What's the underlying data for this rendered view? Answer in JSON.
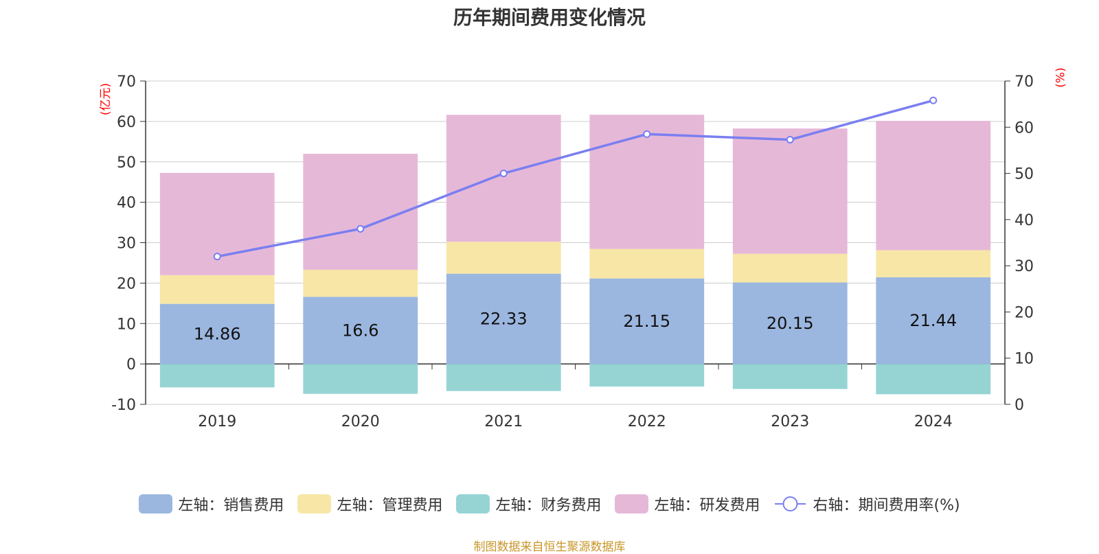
{
  "chart_data": {
    "type": "bar",
    "title": "历年期间费用变化情况",
    "categories": [
      "2019",
      "2020",
      "2021",
      "2022",
      "2023",
      "2024"
    ],
    "left_axis": {
      "unit": "(亿元)",
      "ylim": [
        -10,
        70
      ],
      "ticks": [
        -10,
        0,
        10,
        20,
        30,
        40,
        50,
        60,
        70
      ]
    },
    "right_axis": {
      "unit": "(%)",
      "ylim": [
        0,
        70
      ],
      "ticks": [
        0,
        10,
        20,
        30,
        40,
        50,
        60,
        70
      ]
    },
    "series": [
      {
        "name": "左轴：销售费用",
        "type": "bar",
        "stack": true,
        "color": "#9bb7e0",
        "values": [
          14.86,
          16.6,
          22.33,
          21.15,
          20.15,
          21.44
        ],
        "labels": [
          "14.86",
          "16.6",
          "22.33",
          "21.15",
          "20.15",
          "21.44"
        ]
      },
      {
        "name": "左轴：管理费用",
        "type": "bar",
        "stack": true,
        "color": "#f7e6a6",
        "values": [
          7.1,
          6.7,
          7.9,
          7.3,
          7.1,
          6.7
        ]
      },
      {
        "name": "左轴：财务费用",
        "type": "bar",
        "stack": true,
        "color": "#96d4d4",
        "values": [
          -5.8,
          -7.4,
          -6.7,
          -5.6,
          -6.2,
          -7.5
        ]
      },
      {
        "name": "左轴：研发费用",
        "type": "bar",
        "stack": true,
        "color": "#e6b8d8",
        "values": [
          25.3,
          28.7,
          31.4,
          33.2,
          31.0,
          32.0
        ]
      },
      {
        "name": "右轴：期间费用率(%)",
        "type": "line",
        "axis": "right",
        "color": "#7a7ff0",
        "values": [
          32.0,
          38.0,
          50.0,
          58.5,
          57.3,
          65.8
        ]
      }
    ],
    "grid": true,
    "legend_position": "bottom"
  },
  "source_note": "制图数据来自恒生聚源数据库"
}
